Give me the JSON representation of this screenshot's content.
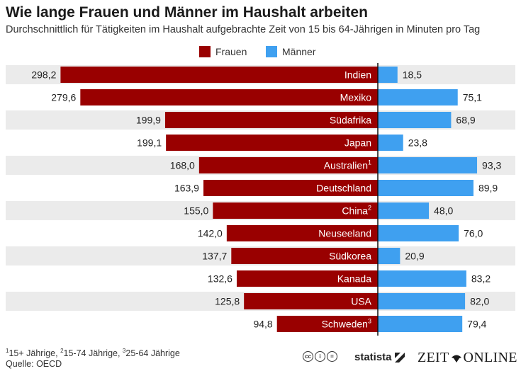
{
  "title": "Wie lange Frauen und Männer im Haushalt arbeiten",
  "subtitle": "Durchschnittlich für Tätigkeiten im Haushalt aufgebrachte Zeit von 15 bis 64-Jährigen in Minuten pro Tag",
  "legend": {
    "women": "Frauen",
    "men": "Männer"
  },
  "colors": {
    "women": "#990000",
    "men": "#3fa0f0",
    "stripe": "#ebebeb",
    "label_text": "#ffffff"
  },
  "chart_data": {
    "type": "bar",
    "orientation": "horizontal-butterfly",
    "value_unit": "Minuten pro Tag",
    "categories": [
      {
        "name": "Indien",
        "sup": ""
      },
      {
        "name": "Mexiko",
        "sup": ""
      },
      {
        "name": "Südafrika",
        "sup": ""
      },
      {
        "name": "Japan",
        "sup": ""
      },
      {
        "name": "Australien",
        "sup": "1"
      },
      {
        "name": "Deutschland",
        "sup": ""
      },
      {
        "name": "China",
        "sup": "2"
      },
      {
        "name": "Neuseeland",
        "sup": ""
      },
      {
        "name": "Südkorea",
        "sup": ""
      },
      {
        "name": "Kanada",
        "sup": ""
      },
      {
        "name": "USA",
        "sup": ""
      },
      {
        "name": "Schweden",
        "sup": "3"
      }
    ],
    "series": [
      {
        "name": "Frauen",
        "values": [
          298.2,
          279.6,
          199.9,
          199.1,
          168.0,
          163.9,
          155.0,
          142.0,
          137.7,
          132.6,
          125.8,
          94.8
        ],
        "labels": [
          "298,2",
          "279,6",
          "199,9",
          "199,1",
          "168,0",
          "163,9",
          "155,0",
          "142,0",
          "137,7",
          "132,6",
          "125,8",
          "94,8"
        ]
      },
      {
        "name": "Männer",
        "values": [
          18.5,
          75.1,
          68.9,
          23.8,
          93.3,
          89.9,
          48.0,
          76.0,
          20.9,
          83.2,
          82.0,
          79.4
        ],
        "labels": [
          "18,5",
          "75,1",
          "68,9",
          "23,8",
          "93,3",
          "89,9",
          "48,0",
          "76,0",
          "20,9",
          "83,2",
          "82,0",
          "79,4"
        ]
      }
    ]
  },
  "footnote": {
    "parts": [
      {
        "sup": "1",
        "text": "15+ Jährige, "
      },
      {
        "sup": "2",
        "text": "15-74 Jährige, "
      },
      {
        "sup": "3",
        "text": "25-64 Jährige"
      }
    ]
  },
  "source": "Quelle: OECD",
  "branding": {
    "statista": "statista",
    "zeit_left": "ZEIT",
    "zeit_right": "ONLINE"
  }
}
